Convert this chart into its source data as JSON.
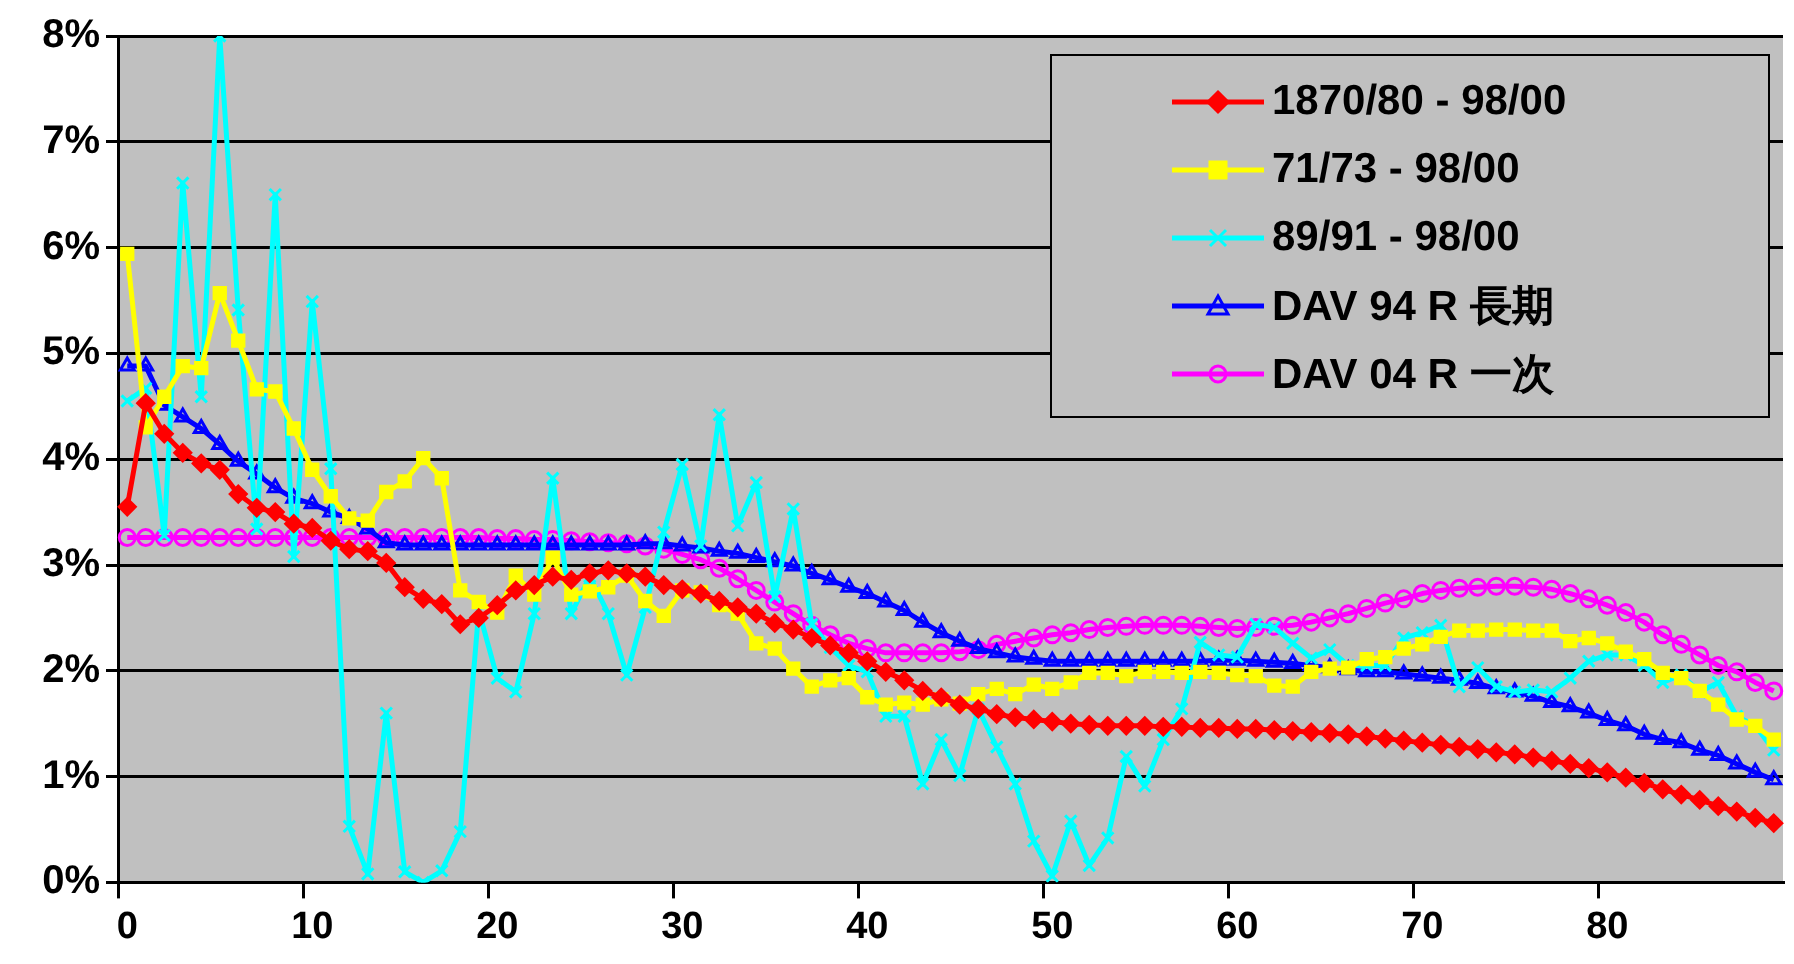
{
  "chart_data": {
    "type": "line",
    "categories": [
      "0",
      null,
      null,
      null,
      null,
      null,
      null,
      null,
      null,
      null,
      "10",
      null,
      null,
      null,
      null,
      null,
      null,
      null,
      null,
      null,
      "20",
      null,
      null,
      null,
      null,
      null,
      null,
      null,
      null,
      null,
      "30",
      null,
      null,
      null,
      null,
      null,
      null,
      null,
      null,
      null,
      "40",
      null,
      null,
      null,
      null,
      null,
      null,
      null,
      null,
      null,
      "50",
      null,
      null,
      null,
      null,
      null,
      null,
      null,
      null,
      null,
      "60",
      null,
      null,
      null,
      null,
      null,
      null,
      null,
      null,
      null,
      "70",
      null,
      null,
      null,
      null,
      null,
      null,
      null,
      null,
      null,
      "80",
      null,
      null,
      null,
      null,
      null,
      null,
      null,
      null,
      null
    ],
    "ylim": [
      0,
      8
    ],
    "yticks": [
      {
        "value": 0,
        "label": "0%"
      },
      {
        "value": 1,
        "label": "1%"
      },
      {
        "value": 2,
        "label": "2%"
      },
      {
        "value": 3,
        "label": "3%"
      },
      {
        "value": 4,
        "label": "4%"
      },
      {
        "value": 5,
        "label": "5%"
      },
      {
        "value": 6,
        "label": "6%"
      },
      {
        "value": 7,
        "label": "7%"
      },
      {
        "value": 8,
        "label": "8%"
      }
    ],
    "grid": "y",
    "legend": "top right",
    "line_style": "solid",
    "series": [
      {
        "name": "1870/80 - 98/00",
        "color": "#ff0000",
        "marker": "diamond",
        "values": [
          3.55,
          4.53,
          4.24,
          4.06,
          3.96,
          3.9,
          3.67,
          3.54,
          3.5,
          3.39,
          3.35,
          3.23,
          3.15,
          3.13,
          3.02,
          2.79,
          2.68,
          2.63,
          2.44,
          2.5,
          2.62,
          2.76,
          2.81,
          2.89,
          2.86,
          2.92,
          2.95,
          2.92,
          2.89,
          2.81,
          2.77,
          2.73,
          2.66,
          2.6,
          2.54,
          2.45,
          2.39,
          2.31,
          2.24,
          2.17,
          2.09,
          1.99,
          1.91,
          1.81,
          1.75,
          1.68,
          1.64,
          1.59,
          1.56,
          1.54,
          1.52,
          1.5,
          1.49,
          1.48,
          1.48,
          1.48,
          1.47,
          1.47,
          1.46,
          1.46,
          1.45,
          1.45,
          1.44,
          1.43,
          1.42,
          1.41,
          1.4,
          1.38,
          1.36,
          1.34,
          1.32,
          1.3,
          1.28,
          1.26,
          1.23,
          1.21,
          1.18,
          1.15,
          1.12,
          1.08,
          1.04,
          0.99,
          0.94,
          0.88,
          0.83,
          0.78,
          0.72,
          0.67,
          0.61,
          0.56
        ]
      },
      {
        "name": "71/73 - 98/00",
        "color": "#ffff00",
        "marker": "square",
        "values": [
          5.94,
          4.3,
          4.59,
          4.88,
          4.86,
          5.57,
          5.12,
          4.66,
          4.64,
          4.29,
          3.9,
          3.65,
          3.44,
          3.42,
          3.69,
          3.79,
          4.01,
          3.82,
          2.76,
          2.65,
          2.55,
          2.9,
          2.72,
          3.07,
          2.72,
          2.75,
          2.79,
          2.9,
          2.66,
          2.52,
          2.76,
          2.74,
          2.62,
          2.54,
          2.26,
          2.21,
          2.02,
          1.85,
          1.91,
          1.93,
          1.75,
          1.68,
          1.7,
          1.68,
          1.73,
          1.69,
          1.78,
          1.83,
          1.78,
          1.87,
          1.83,
          1.89,
          1.98,
          1.98,
          1.95,
          1.99,
          1.99,
          1.98,
          1.99,
          1.98,
          1.96,
          1.95,
          1.86,
          1.85,
          1.99,
          2.02,
          2.03,
          2.11,
          2.13,
          2.21,
          2.25,
          2.32,
          2.38,
          2.38,
          2.39,
          2.39,
          2.38,
          2.38,
          2.28,
          2.31,
          2.26,
          2.18,
          2.11,
          1.98,
          1.93,
          1.81,
          1.68,
          1.54,
          1.48,
          1.35
        ]
      },
      {
        "name": "89/91 - 98/00",
        "color": "#00ffff",
        "marker": "cross",
        "values": [
          4.55,
          4.67,
          3.28,
          6.61,
          4.59,
          8.0,
          5.41,
          3.34,
          6.5,
          3.08,
          5.49,
          3.91,
          0.53,
          0.08,
          1.6,
          0.1,
          0.0,
          0.11,
          0.48,
          2.57,
          1.93,
          1.8,
          2.54,
          3.82,
          2.54,
          2.89,
          2.54,
          1.96,
          2.6,
          3.31,
          3.95,
          3.18,
          4.42,
          3.37,
          3.78,
          2.7,
          3.53,
          2.44,
          2.22,
          2.05,
          1.99,
          1.57,
          1.57,
          0.93,
          1.35,
          1.01,
          1.64,
          1.28,
          0.93,
          0.39,
          0.06,
          0.58,
          0.16,
          0.42,
          1.19,
          0.91,
          1.35,
          1.64,
          2.27,
          2.15,
          2.13,
          2.44,
          2.41,
          2.26,
          2.12,
          2.2,
          2.05,
          2.05,
          2.05,
          2.31,
          2.36,
          2.43,
          1.85,
          2.03,
          1.85,
          1.8,
          1.82,
          1.8,
          1.93,
          2.09,
          2.15,
          2.15,
          2.05,
          1.89,
          1.96,
          1.8,
          1.89,
          1.57,
          1.48,
          1.25
        ]
      },
      {
        "name": "DAV 94 R 長期",
        "color": "#0000ff",
        "marker": "triangle",
        "values": [
          4.88,
          4.88,
          4.51,
          4.4,
          4.29,
          4.14,
          3.98,
          3.86,
          3.73,
          3.63,
          3.58,
          3.5,
          3.44,
          3.34,
          3.21,
          3.19,
          3.19,
          3.19,
          3.19,
          3.19,
          3.19,
          3.19,
          3.19,
          3.19,
          3.19,
          3.19,
          3.19,
          3.19,
          3.2,
          3.2,
          3.18,
          3.16,
          3.13,
          3.11,
          3.07,
          3.03,
          2.99,
          2.92,
          2.86,
          2.79,
          2.73,
          2.65,
          2.57,
          2.46,
          2.36,
          2.28,
          2.21,
          2.17,
          2.13,
          2.11,
          2.09,
          2.09,
          2.09,
          2.09,
          2.09,
          2.09,
          2.09,
          2.09,
          2.09,
          2.1,
          2.1,
          2.09,
          2.08,
          2.07,
          2.05,
          2.03,
          2.01,
          1.99,
          1.99,
          1.97,
          1.95,
          1.93,
          1.91,
          1.88,
          1.83,
          1.8,
          1.76,
          1.7,
          1.66,
          1.6,
          1.53,
          1.48,
          1.4,
          1.35,
          1.32,
          1.25,
          1.2,
          1.12,
          1.04,
          0.97
        ]
      },
      {
        "name": "DAV 04 R 一次",
        "color": "#ff00ff",
        "marker": "circle",
        "values": [
          3.26,
          3.26,
          3.26,
          3.26,
          3.26,
          3.26,
          3.26,
          3.26,
          3.26,
          3.26,
          3.26,
          3.26,
          3.26,
          3.26,
          3.26,
          3.26,
          3.26,
          3.26,
          3.26,
          3.26,
          3.25,
          3.25,
          3.24,
          3.24,
          3.23,
          3.22,
          3.21,
          3.2,
          3.18,
          3.15,
          3.1,
          3.05,
          2.97,
          2.87,
          2.76,
          2.65,
          2.54,
          2.43,
          2.34,
          2.26,
          2.21,
          2.17,
          2.17,
          2.17,
          2.17,
          2.18,
          2.2,
          2.25,
          2.28,
          2.31,
          2.34,
          2.36,
          2.39,
          2.41,
          2.42,
          2.43,
          2.43,
          2.43,
          2.42,
          2.41,
          2.4,
          2.41,
          2.42,
          2.43,
          2.46,
          2.5,
          2.54,
          2.59,
          2.64,
          2.68,
          2.73,
          2.76,
          2.78,
          2.79,
          2.8,
          2.8,
          2.79,
          2.77,
          2.73,
          2.68,
          2.62,
          2.55,
          2.46,
          2.34,
          2.25,
          2.15,
          2.05,
          1.99,
          1.89,
          1.81
        ]
      }
    ]
  }
}
